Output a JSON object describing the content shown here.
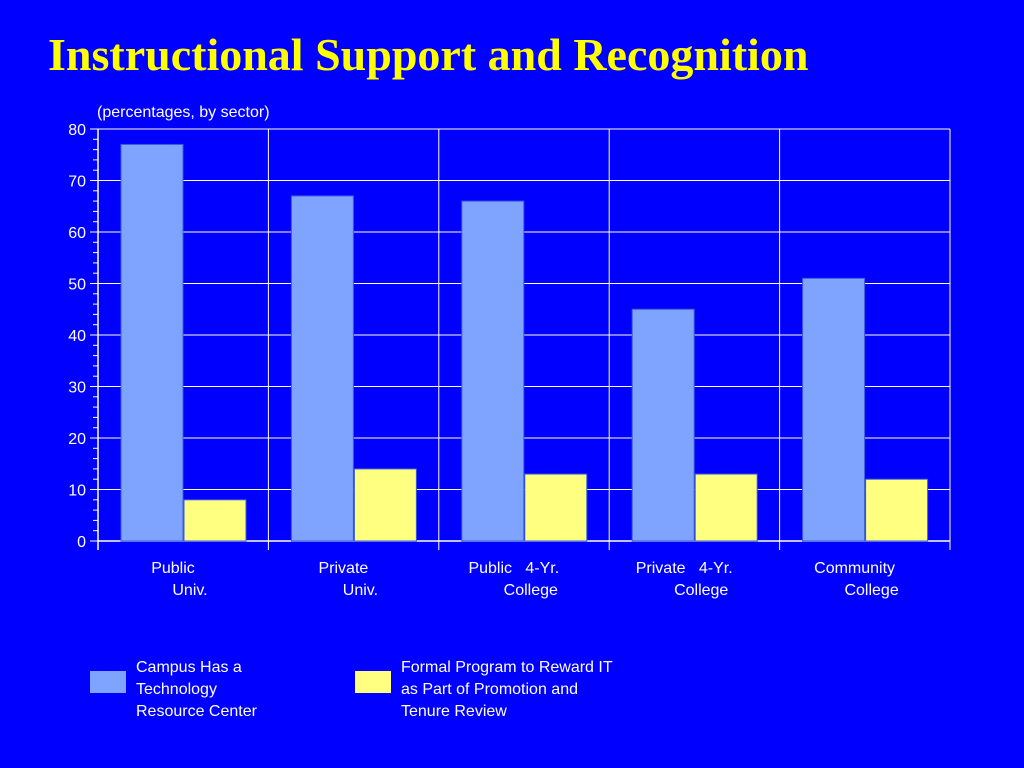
{
  "colors": {
    "background": "#0000FF",
    "title": "#FFFF00",
    "text": "#FFFFFF",
    "series_1": "#7FA4FF",
    "series_2": "#FFFF80"
  },
  "chart_data": {
    "type": "bar",
    "title": "Instructional Support and Recognition",
    "subtitle": "(percentages, by sector)",
    "categories": [
      [
        "Public",
        "Univ."
      ],
      [
        "Private",
        "Univ."
      ],
      [
        "Public   4-Yr.",
        "College"
      ],
      [
        "Private   4-Yr.",
        "College"
      ],
      [
        "Community",
        "College"
      ]
    ],
    "series": [
      {
        "name": "Campus Has a\nTechnology\nResource Center",
        "values": [
          77,
          67,
          66,
          45,
          51
        ]
      },
      {
        "name": "Formal Program to Reward IT\nas Part of Promotion and\nTenure Review",
        "values": [
          8,
          14,
          13,
          13,
          12
        ]
      }
    ],
    "ylim": [
      0,
      80
    ],
    "y_ticks": [
      "0",
      "10",
      "20",
      "30",
      "40",
      "50",
      "60",
      "70",
      "80"
    ],
    "grid": true,
    "legend_position": "bottom"
  }
}
